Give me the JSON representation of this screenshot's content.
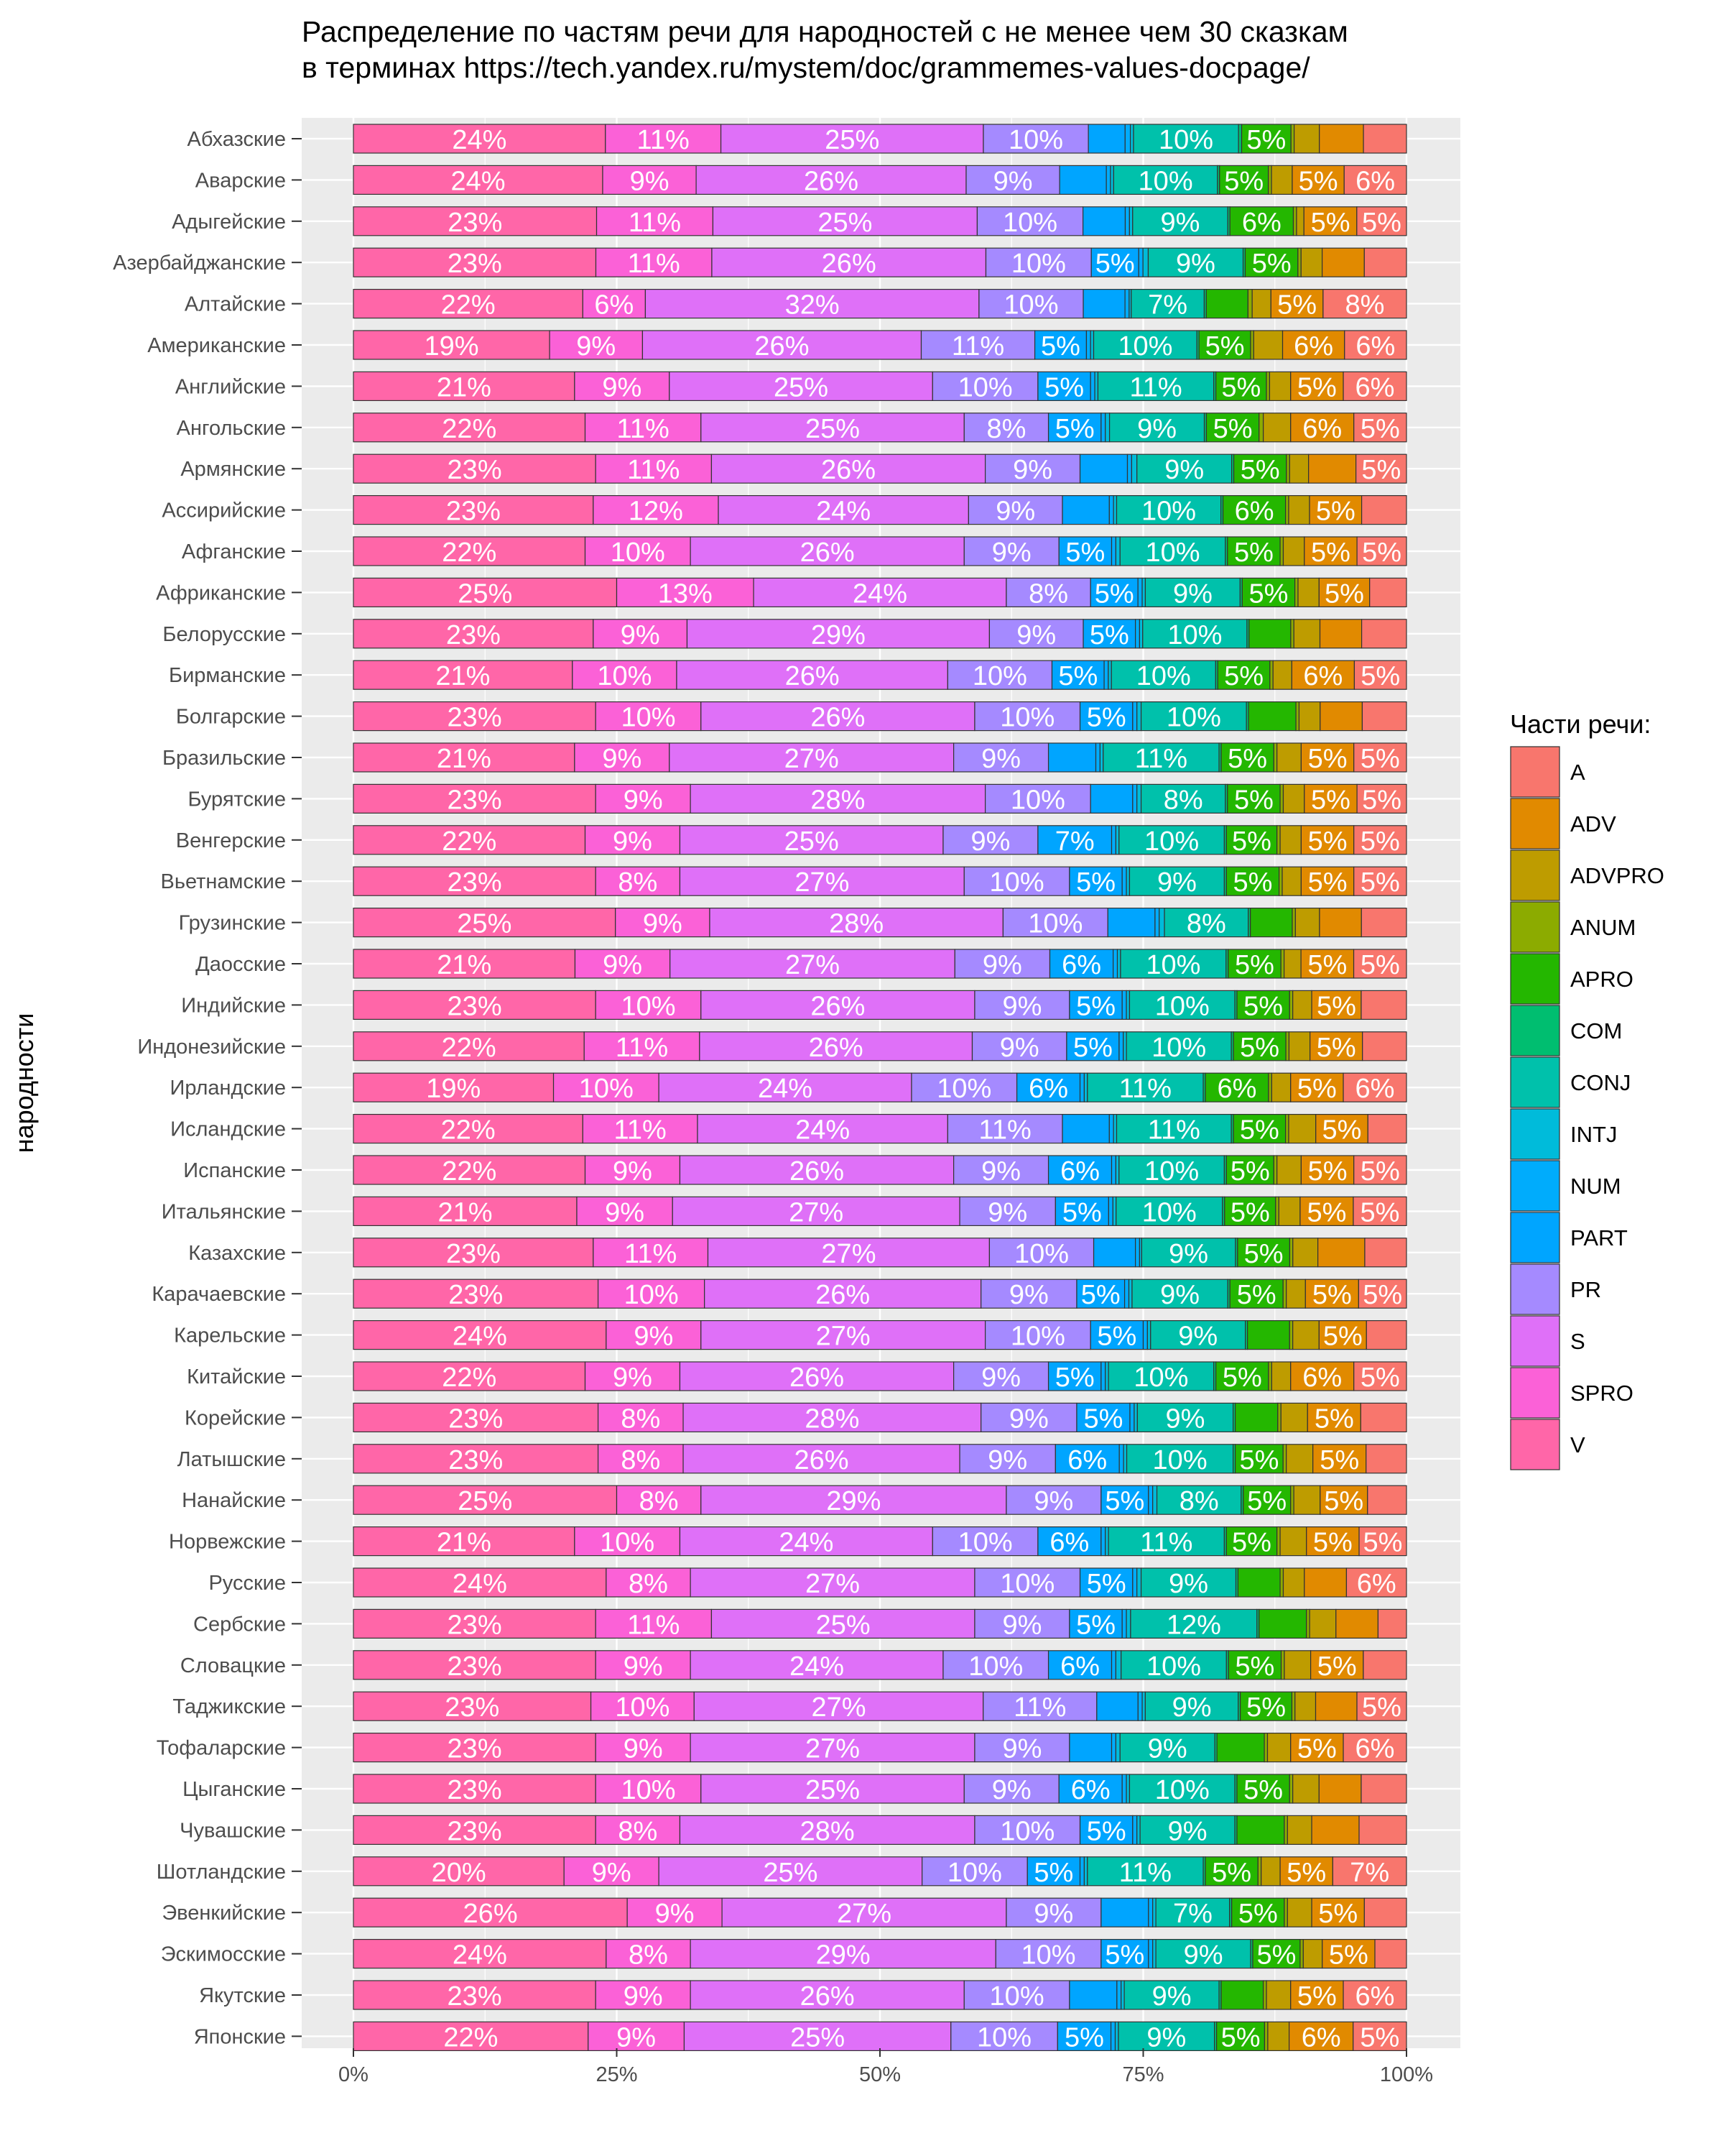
{
  "chart_data": {
    "type": "bar",
    "orientation": "horizontal",
    "stacked": "percent",
    "title": [
      "Распределение по частям речи для народностей с не менее чем 30 сказкам",
      "в терминах https://tech.yandex.ru/mystem/doc/grammemes-values-docpage/"
    ],
    "ylabel": "народности",
    "xlabel": "",
    "xlim": [
      0,
      1
    ],
    "x_ticks": [
      {
        "value": 0,
        "label": "0%"
      },
      {
        "value": 0.25,
        "label": "25%"
      },
      {
        "value": 0.5,
        "label": "50%"
      },
      {
        "value": 0.75,
        "label": "75%"
      },
      {
        "value": 1,
        "label": "100%"
      }
    ],
    "grid": true,
    "legend": {
      "title": "Части речи:",
      "position": "right"
    },
    "series_order": [
      "V",
      "SPRO",
      "S",
      "PR",
      "PART",
      "NUM",
      "INTJ",
      "CONJ",
      "COM",
      "APRO",
      "ANUM",
      "ADVPRO",
      "ADV",
      "A"
    ],
    "legend_order": [
      "A",
      "ADV",
      "ADVPRO",
      "ANUM",
      "APRO",
      "COM",
      "CONJ",
      "INTJ",
      "NUM",
      "PART",
      "PR",
      "S",
      "SPRO",
      "V"
    ],
    "colors": {
      "A": "#F8766D",
      "ADV": "#E18A00",
      "ADVPRO": "#BE9C00",
      "ANUM": "#8CAB00",
      "APRO": "#24B700",
      "COM": "#00BE70",
      "CONJ": "#00C1AB",
      "INTJ": "#00BBDA",
      "NUM": "#00ACFC",
      "PART": "#00A5FF",
      "PR": "#A58AFF",
      "S": "#DF70F8",
      "SPRO": "#FB61D7",
      "V": "#FF66A8"
    },
    "rows": [
      {
        "name": "Абхазские",
        "values": [
          0.24,
          0.11,
          0.25,
          0.1,
          0.035,
          0.005,
          0.003,
          0.1,
          0.003,
          0.047,
          0.003,
          0.024,
          0.042,
          0.041
        ]
      },
      {
        "name": "Аварские",
        "values": [
          0.24,
          0.09,
          0.26,
          0.09,
          0.045,
          0.004,
          0.003,
          0.1,
          0.002,
          0.047,
          0.003,
          0.02,
          0.05,
          0.06
        ]
      },
      {
        "name": "Адыгейские",
        "values": [
          0.23,
          0.11,
          0.25,
          0.1,
          0.04,
          0.004,
          0.003,
          0.09,
          0.002,
          0.06,
          0.003,
          0.007,
          0.05,
          0.047
        ]
      },
      {
        "name": "Азербайджанские",
        "values": [
          0.23,
          0.11,
          0.26,
          0.1,
          0.045,
          0.004,
          0.005,
          0.09,
          0.002,
          0.05,
          0.003,
          0.02,
          0.04,
          0.04
        ]
      },
      {
        "name": "Алтайские",
        "values": [
          0.22,
          0.06,
          0.32,
          0.1,
          0.04,
          0.004,
          0.002,
          0.07,
          0.002,
          0.04,
          0.004,
          0.018,
          0.05,
          0.08
        ]
      },
      {
        "name": "Американские",
        "values": [
          0.19,
          0.09,
          0.27,
          0.11,
          0.05,
          0.004,
          0.003,
          0.1,
          0.002,
          0.05,
          0.003,
          0.028,
          0.06,
          0.06
        ]
      },
      {
        "name": "Английские",
        "values": [
          0.21,
          0.09,
          0.25,
          0.1,
          0.05,
          0.004,
          0.003,
          0.11,
          0.002,
          0.048,
          0.003,
          0.02,
          0.05,
          0.06
        ]
      },
      {
        "name": "Ангольские",
        "values": [
          0.22,
          0.11,
          0.25,
          0.08,
          0.05,
          0.004,
          0.004,
          0.09,
          0.002,
          0.05,
          0.004,
          0.026,
          0.06,
          0.05
        ]
      },
      {
        "name": "Армянские",
        "values": [
          0.23,
          0.11,
          0.26,
          0.09,
          0.045,
          0.004,
          0.005,
          0.09,
          0.002,
          0.05,
          0.003,
          0.018,
          0.045,
          0.048
        ]
      },
      {
        "name": "Ассирийские",
        "values": [
          0.23,
          0.12,
          0.24,
          0.09,
          0.045,
          0.004,
          0.003,
          0.1,
          0.002,
          0.06,
          0.003,
          0.02,
          0.05,
          0.043
        ]
      },
      {
        "name": "Афганские",
        "values": [
          0.22,
          0.1,
          0.26,
          0.09,
          0.05,
          0.004,
          0.004,
          0.1,
          0.002,
          0.05,
          0.003,
          0.02,
          0.05,
          0.047
        ]
      },
      {
        "name": "Африканские",
        "values": [
          0.25,
          0.13,
          0.24,
          0.08,
          0.045,
          0.004,
          0.003,
          0.09,
          0.002,
          0.05,
          0.003,
          0.02,
          0.048,
          0.035
        ]
      },
      {
        "name": "Белорусские",
        "values": [
          0.23,
          0.09,
          0.29,
          0.09,
          0.05,
          0.004,
          0.003,
          0.1,
          0.002,
          0.04,
          0.003,
          0.025,
          0.04,
          0.043
        ]
      },
      {
        "name": "Бирманские",
        "values": [
          0.21,
          0.1,
          0.26,
          0.1,
          0.05,
          0.004,
          0.003,
          0.1,
          0.002,
          0.05,
          0.003,
          0.018,
          0.06,
          0.05
        ]
      },
      {
        "name": "Болгарские",
        "values": [
          0.23,
          0.1,
          0.26,
          0.1,
          0.05,
          0.004,
          0.004,
          0.1,
          0.002,
          0.045,
          0.003,
          0.02,
          0.04,
          0.042
        ]
      },
      {
        "name": "Бразильские",
        "values": [
          0.21,
          0.09,
          0.27,
          0.09,
          0.045,
          0.004,
          0.003,
          0.11,
          0.002,
          0.05,
          0.003,
          0.023,
          0.05,
          0.05
        ]
      },
      {
        "name": "Бурятские",
        "values": [
          0.23,
          0.09,
          0.28,
          0.1,
          0.04,
          0.004,
          0.004,
          0.08,
          0.002,
          0.05,
          0.003,
          0.02,
          0.05,
          0.047
        ]
      },
      {
        "name": "Венгерские",
        "values": [
          0.22,
          0.09,
          0.25,
          0.09,
          0.07,
          0.004,
          0.003,
          0.1,
          0.002,
          0.048,
          0.003,
          0.02,
          0.05,
          0.05
        ]
      },
      {
        "name": "Вьетнамские",
        "values": [
          0.23,
          0.08,
          0.27,
          0.1,
          0.05,
          0.004,
          0.003,
          0.09,
          0.002,
          0.05,
          0.003,
          0.018,
          0.05,
          0.05
        ]
      },
      {
        "name": "Грузинские",
        "values": [
          0.25,
          0.09,
          0.28,
          0.1,
          0.045,
          0.004,
          0.005,
          0.08,
          0.002,
          0.04,
          0.003,
          0.023,
          0.04,
          0.043
        ]
      },
      {
        "name": "Даосские",
        "values": [
          0.21,
          0.09,
          0.27,
          0.09,
          0.06,
          0.004,
          0.003,
          0.1,
          0.002,
          0.05,
          0.003,
          0.016,
          0.05,
          0.05
        ]
      },
      {
        "name": "Индийские",
        "values": [
          0.23,
          0.1,
          0.26,
          0.09,
          0.05,
          0.004,
          0.003,
          0.1,
          0.002,
          0.05,
          0.003,
          0.018,
          0.047,
          0.043
        ]
      },
      {
        "name": "Индонезийские",
        "values": [
          0.22,
          0.11,
          0.26,
          0.09,
          0.05,
          0.004,
          0.003,
          0.1,
          0.002,
          0.05,
          0.003,
          0.02,
          0.05,
          0.042
        ]
      },
      {
        "name": "Ирландские",
        "values": [
          0.19,
          0.1,
          0.24,
          0.1,
          0.06,
          0.004,
          0.003,
          0.11,
          0.002,
          0.06,
          0.003,
          0.018,
          0.05,
          0.06
        ]
      },
      {
        "name": "Исландские",
        "values": [
          0.22,
          0.11,
          0.24,
          0.11,
          0.045,
          0.004,
          0.003,
          0.11,
          0.002,
          0.05,
          0.003,
          0.026,
          0.05,
          0.037
        ]
      },
      {
        "name": "Испанские",
        "values": [
          0.22,
          0.09,
          0.26,
          0.09,
          0.06,
          0.004,
          0.003,
          0.1,
          0.002,
          0.045,
          0.003,
          0.023,
          0.05,
          0.05
        ]
      },
      {
        "name": "Итальянские",
        "values": [
          0.21,
          0.09,
          0.27,
          0.09,
          0.05,
          0.004,
          0.003,
          0.1,
          0.002,
          0.048,
          0.003,
          0.02,
          0.05,
          0.05
        ]
      },
      {
        "name": "Казахские",
        "values": [
          0.23,
          0.11,
          0.27,
          0.1,
          0.04,
          0.004,
          0.002,
          0.09,
          0.002,
          0.05,
          0.003,
          0.024,
          0.045,
          0.04
        ]
      },
      {
        "name": "Карачаевские",
        "values": [
          0.23,
          0.1,
          0.26,
          0.09,
          0.045,
          0.004,
          0.003,
          0.09,
          0.002,
          0.05,
          0.003,
          0.018,
          0.05,
          0.045
        ]
      },
      {
        "name": "Карельские",
        "values": [
          0.24,
          0.09,
          0.27,
          0.1,
          0.05,
          0.004,
          0.003,
          0.09,
          0.002,
          0.04,
          0.003,
          0.025,
          0.045,
          0.038
        ]
      },
      {
        "name": "Китайские",
        "values": [
          0.22,
          0.09,
          0.26,
          0.09,
          0.05,
          0.004,
          0.003,
          0.1,
          0.002,
          0.05,
          0.003,
          0.018,
          0.06,
          0.05
        ]
      },
      {
        "name": "Корейские",
        "values": [
          0.23,
          0.08,
          0.28,
          0.09,
          0.05,
          0.004,
          0.003,
          0.09,
          0.002,
          0.04,
          0.003,
          0.025,
          0.05,
          0.043
        ]
      },
      {
        "name": "Латышские",
        "values": [
          0.23,
          0.08,
          0.26,
          0.09,
          0.06,
          0.004,
          0.003,
          0.1,
          0.002,
          0.045,
          0.003,
          0.025,
          0.05,
          0.038
        ]
      },
      {
        "name": "Нанайские",
        "values": [
          0.25,
          0.08,
          0.29,
          0.09,
          0.045,
          0.004,
          0.004,
          0.08,
          0.002,
          0.045,
          0.003,
          0.025,
          0.045,
          0.037
        ]
      },
      {
        "name": "Норвежские",
        "values": [
          0.21,
          0.1,
          0.24,
          0.1,
          0.06,
          0.004,
          0.003,
          0.11,
          0.002,
          0.048,
          0.003,
          0.025,
          0.05,
          0.045
        ]
      },
      {
        "name": "Русские",
        "values": [
          0.24,
          0.08,
          0.27,
          0.1,
          0.05,
          0.004,
          0.004,
          0.09,
          0.002,
          0.04,
          0.003,
          0.02,
          0.04,
          0.057
        ]
      },
      {
        "name": "Сербские",
        "values": [
          0.23,
          0.11,
          0.25,
          0.09,
          0.05,
          0.004,
          0.004,
          0.12,
          0.002,
          0.045,
          0.003,
          0.025,
          0.04,
          0.027
        ]
      },
      {
        "name": "Словацкие",
        "values": [
          0.23,
          0.09,
          0.24,
          0.1,
          0.06,
          0.004,
          0.005,
          0.1,
          0.002,
          0.05,
          0.003,
          0.025,
          0.05,
          0.041
        ]
      },
      {
        "name": "Таджикские",
        "values": [
          0.23,
          0.1,
          0.28,
          0.11,
          0.04,
          0.004,
          0.003,
          0.09,
          0.002,
          0.05,
          0.003,
          0.02,
          0.04,
          0.048
        ]
      },
      {
        "name": "Тофаларские",
        "values": [
          0.23,
          0.09,
          0.27,
          0.09,
          0.04,
          0.004,
          0.004,
          0.09,
          0.002,
          0.045,
          0.003,
          0.022,
          0.05,
          0.06
        ]
      },
      {
        "name": "Цыганские",
        "values": [
          0.23,
          0.1,
          0.25,
          0.09,
          0.06,
          0.004,
          0.003,
          0.1,
          0.002,
          0.05,
          0.003,
          0.025,
          0.04,
          0.043
        ]
      },
      {
        "name": "Чувашские",
        "values": [
          0.23,
          0.08,
          0.28,
          0.1,
          0.05,
          0.004,
          0.003,
          0.09,
          0.002,
          0.045,
          0.003,
          0.023,
          0.045,
          0.045
        ]
      },
      {
        "name": "Шотландские",
        "values": [
          0.2,
          0.09,
          0.25,
          0.1,
          0.05,
          0.004,
          0.003,
          0.11,
          0.002,
          0.05,
          0.003,
          0.018,
          0.05,
          0.07
        ]
      },
      {
        "name": "Эвенкийские",
        "values": [
          0.26,
          0.09,
          0.27,
          0.09,
          0.045,
          0.004,
          0.003,
          0.07,
          0.002,
          0.05,
          0.003,
          0.023,
          0.05,
          0.04
        ]
      },
      {
        "name": "Эскимосские",
        "values": [
          0.24,
          0.08,
          0.29,
          0.1,
          0.045,
          0.004,
          0.003,
          0.09,
          0.002,
          0.045,
          0.003,
          0.018,
          0.05,
          0.03
        ]
      },
      {
        "name": "Якутские",
        "values": [
          0.23,
          0.09,
          0.26,
          0.1,
          0.045,
          0.004,
          0.003,
          0.09,
          0.002,
          0.04,
          0.003,
          0.023,
          0.05,
          0.06
        ]
      },
      {
        "name": "Японские",
        "values": [
          0.22,
          0.09,
          0.25,
          0.1,
          0.05,
          0.004,
          0.003,
          0.09,
          0.002,
          0.045,
          0.003,
          0.02,
          0.06,
          0.05
        ]
      }
    ]
  }
}
